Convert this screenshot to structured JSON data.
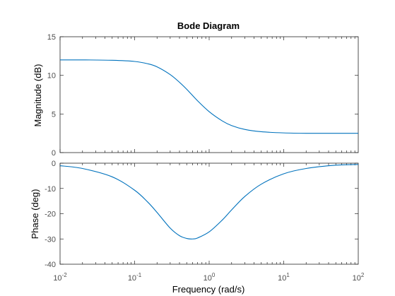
{
  "chart_data": {
    "type": "line",
    "title": "Bode Diagram",
    "xlabel": "Frequency  (rad/s)",
    "xscale": "log",
    "xlim": [
      0.01,
      100
    ],
    "x_ticks": [
      {
        "base": "10",
        "exp": "-2"
      },
      {
        "base": "10",
        "exp": "-1"
      },
      {
        "base": "10",
        "exp": "0"
      },
      {
        "base": "10",
        "exp": "1"
      },
      {
        "base": "10",
        "exp": "2"
      }
    ],
    "line_color": "#0072bd",
    "grid": false,
    "panels": [
      {
        "ylabel": "Magnitude (dB)",
        "ylim": [
          0,
          15
        ],
        "y_ticks": [
          "0",
          "5",
          "10",
          "15"
        ],
        "x": [
          0.01,
          0.02,
          0.05,
          0.1,
          0.15,
          0.2,
          0.3,
          0.4,
          0.5,
          0.7,
          1,
          1.5,
          2,
          3,
          5,
          10,
          20,
          50,
          100
        ],
        "y": [
          12.0,
          12.0,
          11.95,
          11.8,
          11.5,
          11.1,
          10.1,
          9.1,
          8.2,
          6.7,
          5.3,
          4.1,
          3.5,
          3.0,
          2.7,
          2.55,
          2.5,
          2.5,
          2.5
        ]
      },
      {
        "ylabel": "Phase (deg)",
        "ylim": [
          -40,
          0
        ],
        "y_ticks": [
          "-40",
          "-30",
          "-20",
          "-10",
          "0"
        ],
        "x": [
          0.01,
          0.02,
          0.05,
          0.1,
          0.15,
          0.2,
          0.3,
          0.4,
          0.5,
          0.6,
          0.7,
          1,
          1.5,
          2,
          3,
          5,
          10,
          20,
          50,
          100
        ],
        "y": [
          -1.0,
          -2.1,
          -5.4,
          -10.7,
          -15.4,
          -19.5,
          -25.7,
          -28.7,
          -29.8,
          -30.0,
          -29.6,
          -27.2,
          -22.5,
          -18.5,
          -13.2,
          -8.3,
          -4.2,
          -2.1,
          -0.8,
          -0.5
        ]
      }
    ]
  }
}
